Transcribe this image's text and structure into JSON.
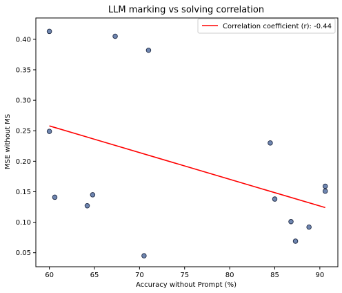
{
  "chart_data": {
    "type": "scatter",
    "title": "LLM marking vs solving correlation",
    "xlabel": "Accuracy without Prompt (%)",
    "ylabel": "MSE without MS",
    "xlim": [
      58.5,
      92
    ],
    "ylim": [
      0.027,
      0.435
    ],
    "xticks": [
      60,
      65,
      70,
      75,
      80,
      85,
      90
    ],
    "yticks": [
      0.05,
      0.1,
      0.15,
      0.2,
      0.25,
      0.3,
      0.35,
      0.4
    ],
    "ytick_labels": [
      "0.05",
      "0.10",
      "0.15",
      "0.20",
      "0.25",
      "0.30",
      "0.35",
      "0.40"
    ],
    "grid": false,
    "legend_position": "top-right",
    "points": [
      {
        "x": 60.0,
        "y": 0.413
      },
      {
        "x": 67.3,
        "y": 0.405
      },
      {
        "x": 71.0,
        "y": 0.382
      },
      {
        "x": 60.0,
        "y": 0.249
      },
      {
        "x": 60.6,
        "y": 0.141
      },
      {
        "x": 64.8,
        "y": 0.145
      },
      {
        "x": 64.2,
        "y": 0.127
      },
      {
        "x": 70.5,
        "y": 0.045
      },
      {
        "x": 84.5,
        "y": 0.23
      },
      {
        "x": 85.0,
        "y": 0.138
      },
      {
        "x": 86.8,
        "y": 0.101
      },
      {
        "x": 87.3,
        "y": 0.069
      },
      {
        "x": 88.8,
        "y": 0.092
      },
      {
        "x": 90.6,
        "y": 0.159
      },
      {
        "x": 90.6,
        "y": 0.151
      }
    ],
    "trendline": {
      "label": "Correlation coefficient (r): -0.44",
      "x": [
        60.0,
        90.6
      ],
      "y": [
        0.258,
        0.124
      ],
      "color": "#ff0000"
    },
    "point_color": "#6f86b0",
    "point_edge_color": "#1f2a44"
  }
}
